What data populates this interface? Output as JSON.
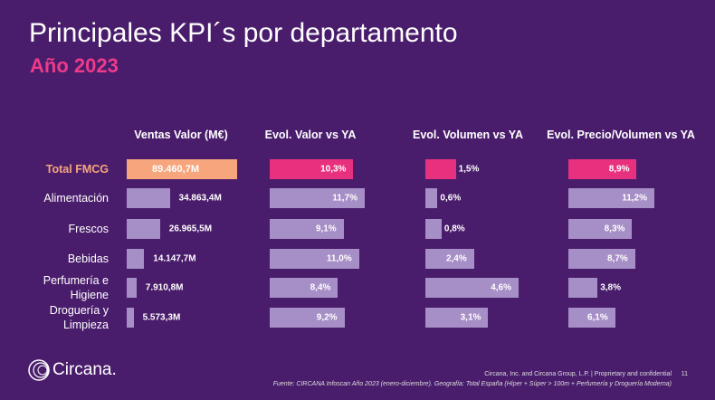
{
  "title": "Principales KPI´s por departamento",
  "subtitle": "Año 2023",
  "logo": "Circana.",
  "footer": "Circana, Inc. and Circana Group, L.P. | Proprietary and confidential",
  "page_number": "11",
  "source": "Fuente: CIRCANA Infoscan Año 2023 (enero-diciembre). Geografía: Total España (Híper + Súper > 100m + Perfumería y Droguería Moderna)",
  "chart_data": [
    {
      "type": "bar",
      "title": "Ventas Valor (M€)",
      "categories": [
        "Total FMCG",
        "Alimentación",
        "Frescos",
        "Bebidas",
        "Perfumería e Higiene",
        "Droguería y Limpieza"
      ],
      "values": [
        89460.7,
        34863.4,
        26965.5,
        14147.7,
        7910.8,
        5573.3
      ],
      "value_labels": [
        "89.460,7M",
        "34.863,4M",
        "26.965,5M",
        "14.147,7M",
        "7.910,8M",
        "5.573,3M"
      ],
      "color": "#a68ec6",
      "highlight_color": "#f6a57c"
    },
    {
      "type": "bar",
      "title": "Evol. Valor vs YA",
      "values": [
        10.3,
        11.7,
        9.1,
        11.0,
        8.4,
        9.2
      ],
      "value_labels": [
        "10,3%",
        "11,7%",
        "9,1%",
        "11,0%",
        "8,4%",
        "9,2%"
      ],
      "color": "#a68ec6",
      "highlight_color": "#e8317e"
    },
    {
      "type": "bar",
      "title": "Evol. Volumen vs YA",
      "values": [
        1.5,
        0.6,
        0.8,
        2.4,
        4.6,
        3.1
      ],
      "value_labels": [
        "1,5%",
        "0,6%",
        "0,8%",
        "2,4%",
        "4,6%",
        "3,1%"
      ],
      "color": "#a68ec6",
      "highlight_color": "#e8317e"
    },
    {
      "type": "bar",
      "title": "Evol. Precio/Volumen vs YA",
      "values": [
        8.9,
        11.2,
        8.3,
        8.7,
        3.8,
        6.1
      ],
      "value_labels": [
        "8,9%",
        "11,2%",
        "8,3%",
        "8,7%",
        "3,8%",
        "6,1%"
      ],
      "color": "#a68ec6",
      "highlight_color": "#e8317e"
    }
  ]
}
